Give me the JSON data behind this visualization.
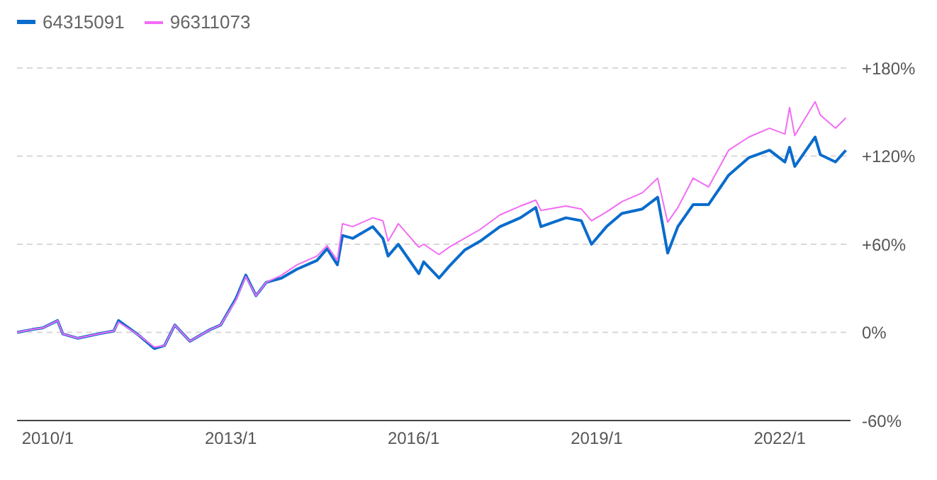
{
  "chart_data": {
    "type": "line",
    "x": [
      "2009-07",
      "2009-10",
      "2009-12",
      "2010-03",
      "2010-04",
      "2010-07",
      "2010-11",
      "2011-02",
      "2011-03",
      "2011-07",
      "2011-10",
      "2011-12",
      "2012-02",
      "2012-05",
      "2012-09",
      "2012-11",
      "2013-02",
      "2013-04",
      "2013-06",
      "2013-08",
      "2013-11",
      "2014-02",
      "2014-06",
      "2014-08",
      "2014-10",
      "2014-11",
      "2015-01",
      "2015-05",
      "2015-07",
      "2015-08",
      "2015-10",
      "2016-02",
      "2016-03",
      "2016-06",
      "2016-08",
      "2016-11",
      "2017-02",
      "2017-06",
      "2017-10",
      "2018-01",
      "2018-02",
      "2018-07",
      "2018-10",
      "2018-12",
      "2019-03",
      "2019-06",
      "2019-10",
      "2020-01",
      "2020-03",
      "2020-05",
      "2020-08",
      "2020-11",
      "2021-03",
      "2021-07",
      "2021-11",
      "2022-02",
      "2022-03",
      "2022-04",
      "2022-08",
      "2022-09",
      "2022-12",
      "2023-02"
    ],
    "series": [
      {
        "name": "64315091",
        "color": "#0a6ccc",
        "values": [
          0,
          2,
          3,
          8,
          -1,
          -4,
          -1,
          1,
          8,
          -2,
          -11,
          -9,
          5,
          -6,
          2,
          5,
          23,
          39,
          25,
          34,
          37,
          43,
          49,
          57,
          46,
          66,
          64,
          72,
          64,
          52,
          60,
          40,
          48,
          37,
          45,
          56,
          62,
          72,
          78,
          85,
          72,
          78,
          76,
          60,
          72,
          81,
          84,
          92,
          54,
          72,
          87,
          87,
          107,
          119,
          124,
          116,
          126,
          113,
          133,
          121,
          116,
          124
        ]
      },
      {
        "name": "96311073",
        "color": "#f26cf5",
        "values": [
          0,
          2,
          3,
          8,
          -1,
          -4,
          -1,
          1,
          7,
          -2,
          -10,
          -9,
          5,
          -6,
          2,
          5,
          22,
          38,
          25,
          34,
          39,
          46,
          52,
          59,
          49,
          74,
          72,
          78,
          76,
          62,
          74,
          58,
          60,
          53,
          58,
          64,
          70,
          80,
          86,
          90,
          83,
          86,
          84,
          76,
          82,
          89,
          95,
          105,
          75,
          85,
          105,
          99,
          124,
          133,
          139,
          135,
          153,
          134,
          157,
          148,
          139,
          146
        ]
      }
    ],
    "xlim": [
      "2009-07",
      "2023-03"
    ],
    "xticks": [
      {
        "value": "2010-01",
        "label": "2010/1"
      },
      {
        "value": "2013-01",
        "label": "2013/1"
      },
      {
        "value": "2016-01",
        "label": "2016/1"
      },
      {
        "value": "2019-01",
        "label": "2019/1"
      },
      {
        "value": "2022-01",
        "label": "2022/1"
      }
    ],
    "ylim": [
      -60,
      180
    ],
    "yticks": [
      {
        "value": -60,
        "label": "-60%"
      },
      {
        "value": 0,
        "label": "0%"
      },
      {
        "value": 60,
        "label": "+60%"
      },
      {
        "value": 120,
        "label": "+120%"
      },
      {
        "value": 180,
        "label": "+180%"
      }
    ],
    "grid": "y",
    "legend": "top left",
    "marker": "none",
    "line_style": "solid"
  }
}
